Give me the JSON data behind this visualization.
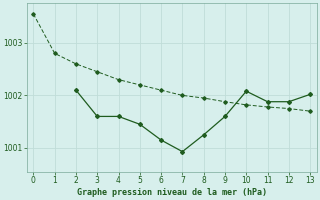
{
  "line1_x": [
    0,
    1,
    2,
    3,
    4,
    5,
    6,
    7,
    8,
    9,
    10,
    11,
    12,
    13
  ],
  "line1_y": [
    1003.55,
    1002.8,
    1002.6,
    1002.45,
    1002.3,
    1002.2,
    1002.1,
    1002.0,
    1001.95,
    1001.88,
    1001.82,
    1001.78,
    1001.75,
    1001.7
  ],
  "line2_x": [
    2,
    3,
    4,
    5,
    6,
    7,
    8,
    9,
    10,
    11,
    12,
    13
  ],
  "line2_y": [
    1002.1,
    1001.6,
    1001.6,
    1001.45,
    1001.15,
    1000.93,
    1001.25,
    1001.6,
    1002.08,
    1001.88,
    1001.88,
    1002.02
  ],
  "bg_color": "#d7efec",
  "line_color": "#1f5c1f",
  "grid_color": "#c0ddd8",
  "xlabel": "Graphe pression niveau de la mer (hPa)",
  "xticks": [
    0,
    1,
    2,
    3,
    4,
    5,
    6,
    7,
    8,
    9,
    10,
    11,
    12,
    13
  ],
  "yticks": [
    1001,
    1002,
    1003
  ],
  "ylim": [
    1000.55,
    1003.75
  ],
  "xlim": [
    -0.3,
    13.3
  ]
}
